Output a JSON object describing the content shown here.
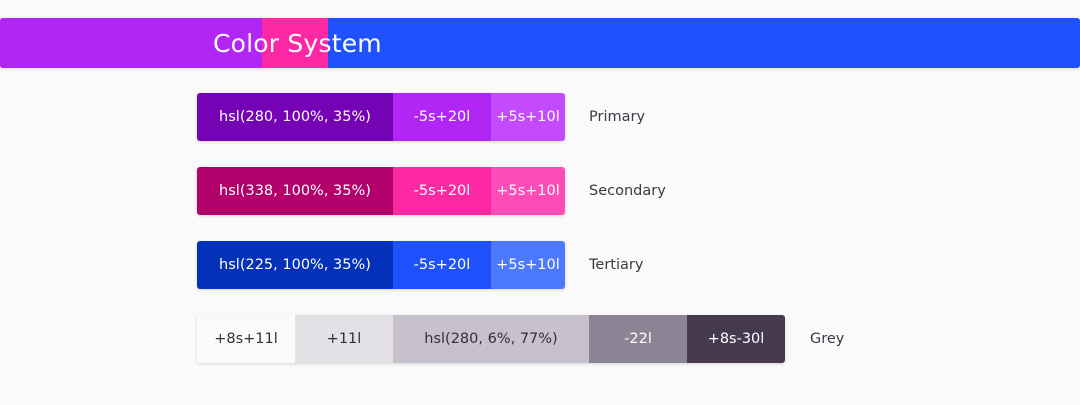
{
  "header": {
    "title": "Color System"
  },
  "rows": [
    {
      "label": "Primary",
      "swatches": [
        {
          "text": "hsl(280, 100%, 35%)",
          "bg": "#7502b5",
          "fg": "#ffffff"
        },
        {
          "text": "-5s+20l",
          "bg": "#b125f5",
          "fg": "#ffffff"
        },
        {
          "text": "+5s+10l",
          "bg": "#c34bfd",
          "fg": "#ffffff"
        }
      ]
    },
    {
      "label": "Secondary",
      "swatches": [
        {
          "text": "hsl(338, 100%, 35%)",
          "bg": "#b2016a",
          "fg": "#ffffff"
        },
        {
          "text": "-5s+20l",
          "bg": "#fc28a4",
          "fg": "#ffffff"
        },
        {
          "text": "+5s+10l",
          "bg": "#fd4cb5",
          "fg": "#ffffff"
        }
      ]
    },
    {
      "label": "Tertiary",
      "swatches": [
        {
          "text": "hsl(225, 100%, 35%)",
          "bg": "#0431ba",
          "fg": "#ffffff"
        },
        {
          "text": "-5s+20l",
          "bg": "#1f52fd",
          "fg": "#ffffff"
        },
        {
          "text": "+5s+10l",
          "bg": "#4c79fd",
          "fg": "#ffffff"
        }
      ]
    },
    {
      "label": "Grey",
      "swatches": [
        {
          "text": "+8s+11l",
          "bg": "#fafafa",
          "fg": "#33303a"
        },
        {
          "text": "+11l",
          "bg": "#e3e1e6",
          "fg": "#33303a"
        },
        {
          "text": "hsl(280, 6%, 77%)",
          "bg": "#c6c1cb",
          "fg": "#33303a"
        },
        {
          "text": "-22l",
          "bg": "#8c8494",
          "fg": "#ffffff"
        },
        {
          "text": "+8s-30l",
          "bg": "#453a4f",
          "fg": "#ffffff"
        }
      ]
    }
  ]
}
